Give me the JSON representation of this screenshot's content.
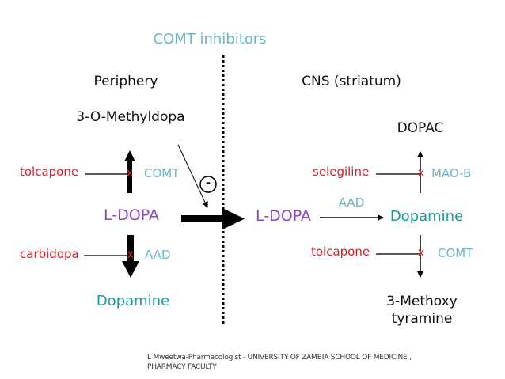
{
  "title": "COMT inhibitors",
  "periphery": {
    "heading": "Periphery",
    "metabolite_top": "3-O-Methyldopa",
    "inhibitor_top": "tolcapone",
    "enzyme_top": "COMT",
    "center": "L-DOPA",
    "inhibitor_bottom": "carbidopa",
    "enzyme_bottom": "AAD",
    "product_bottom": "Dopamine",
    "block_mark": "x",
    "inhibition_symbol": "-"
  },
  "cns": {
    "heading": "CNS (striatum)",
    "metabolite_top": "DOPAC",
    "inhibitor_top": "selegiline",
    "enzyme_top": "MAO-B",
    "source": "L-DOPA",
    "conversion_enzyme": "AAD",
    "center": "Dopamine",
    "inhibitor_bottom": "tolcapone",
    "enzyme_bottom": "COMT",
    "product_bottom_line1": "3-Methoxy",
    "product_bottom_line2": "tyramine",
    "block_mark": "x"
  },
  "footer": {
    "line1": "L Mweetwa-Pharmacologist - UNIVERSITY OF ZAMBIA SCHOOL OF MEDICINE ,",
    "line2": "PHARMACY FACULTY"
  },
  "colors": {
    "inhibitor": "#d3202b",
    "enzyme": "#6bb6c8",
    "ldopa": "#8b46c9",
    "dopamine": "#17999a"
  }
}
